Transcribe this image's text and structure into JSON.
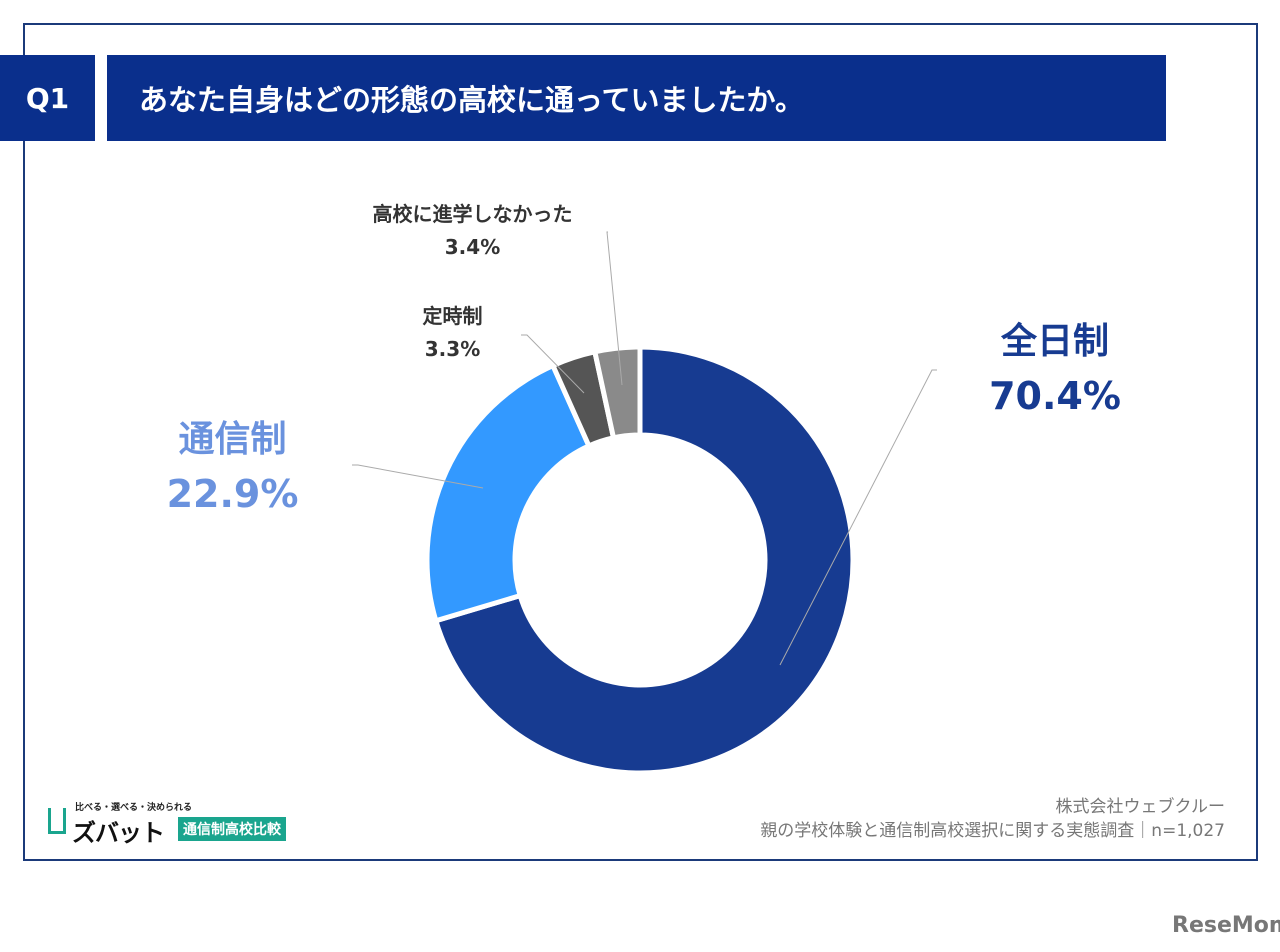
{
  "header": {
    "q_label": "Q1",
    "title": "あなた自身はどの形態の高校に通っていましたか。"
  },
  "chart_data": {
    "type": "pie",
    "donut": true,
    "categories": [
      "全日制",
      "通信制",
      "定時制",
      "高校に進学しなかった"
    ],
    "values": [
      70.4,
      22.9,
      3.3,
      3.4
    ],
    "labels": [
      "70.4%",
      "22.9%",
      "3.3%",
      "3.4%"
    ],
    "colors": [
      "#173b91",
      "#3399ff",
      "#555555",
      "#8a8a8a"
    ],
    "label_colors": [
      "#173b91",
      "#6a92de",
      "#333333",
      "#333333"
    ]
  },
  "source": {
    "company": "株式会社ウェブクルー",
    "survey": "親の学校体験と通信制高校選択に関する実態調査｜n=1,027"
  },
  "logo": {
    "tagline": "比べる・選べる・決められる",
    "name": "ズバット",
    "badge": "通信制高校比較"
  },
  "watermark": "ReseMom"
}
